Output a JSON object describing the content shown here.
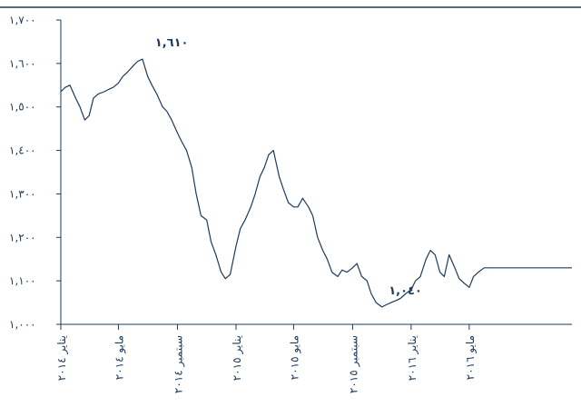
{
  "chart_data": {
    "type": "line",
    "title": "",
    "xlabel": "",
    "ylabel": "",
    "ylim": [
      1000,
      1700
    ],
    "y_ticks": [
      1000,
      1100,
      1200,
      1300,
      1400,
      1500,
      1600,
      1700
    ],
    "y_tick_labels": [
      "١,٠٠٠",
      "١,١٠٠",
      "١,٢٠٠",
      "١,٣٠٠",
      "١,٤٠٠",
      "١,٥٠٠",
      "١,٦٠٠",
      "١,٧٠٠"
    ],
    "x_range": [
      "2014-01",
      "2016-12"
    ],
    "x_ticks": [
      "2014-01",
      "2014-05",
      "2014-09",
      "2015-01",
      "2015-05",
      "2015-09",
      "2016-01",
      "2016-05"
    ],
    "x_tick_labels": [
      "يناير ٢٠١٤",
      "مايو ٢٠١٤",
      "سبتمبر ٢٠١٤",
      "يناير ٢٠١٥",
      "مايو ٢٠١٥",
      "سبتمبر ٢٠١٥",
      "يناير ٢٠١٦",
      "مايو ٢٠١٦"
    ],
    "grid": false,
    "colors": {
      "line": "#1d3b5c",
      "axis": "#1d3b5c",
      "text": "#1d3b5c"
    },
    "annotations": [
      {
        "text": "١,٦١٠",
        "x": "2014-08-20",
        "y": 1610
      },
      {
        "text": "١,٠٤٠",
        "x": "2015-12-20",
        "y": 1040
      }
    ],
    "series": [
      {
        "x": [
          "2014-01-01",
          "2014-01-10",
          "2014-01-20",
          "2014-02-01",
          "2014-02-10",
          "2014-02-20",
          "2014-03-01",
          "2014-03-10",
          "2014-03-20",
          "2014-04-01",
          "2014-04-10",
          "2014-04-20",
          "2014-05-01",
          "2014-05-10",
          "2014-05-20",
          "2014-06-01",
          "2014-06-10",
          "2014-06-20",
          "2014-07-01",
          "2014-07-10",
          "2014-07-20",
          "2014-08-01",
          "2014-08-10",
          "2014-08-20",
          "2014-09-01",
          "2014-09-10",
          "2014-09-20",
          "2014-10-01",
          "2014-10-10",
          "2014-10-20",
          "2014-11-01",
          "2014-11-10",
          "2014-11-20",
          "2014-12-01",
          "2014-12-10",
          "2014-12-20",
          "2015-01-01",
          "2015-01-10",
          "2015-01-20",
          "2015-02-01",
          "2015-02-10",
          "2015-02-20",
          "2015-03-01",
          "2015-03-10",
          "2015-03-20",
          "2015-04-01",
          "2015-04-10",
          "2015-04-20",
          "2015-05-01",
          "2015-05-10",
          "2015-05-20",
          "2015-06-01",
          "2015-06-10",
          "2015-06-20",
          "2015-07-01",
          "2015-07-10",
          "2015-07-20",
          "2015-08-01",
          "2015-08-10",
          "2015-08-20",
          "2015-09-01",
          "2015-09-10",
          "2015-09-20",
          "2015-10-01",
          "2015-10-10",
          "2015-10-20",
          "2015-11-01",
          "2015-11-10",
          "2015-11-20",
          "2015-12-01",
          "2015-12-10",
          "2015-12-20",
          "2016-01-01",
          "2016-01-10",
          "2016-01-20",
          "2016-02-01",
          "2016-02-10",
          "2016-02-20",
          "2016-03-01",
          "2016-03-10",
          "2016-03-20",
          "2016-04-01",
          "2016-04-10",
          "2016-04-20",
          "2016-05-01",
          "2016-05-10",
          "2016-05-20",
          "2016-06-01",
          "2016-06-10",
          "2016-06-20",
          "2016-07-01",
          "2016-07-10",
          "2016-07-20",
          "2016-08-01",
          "2016-08-10",
          "2016-08-20",
          "2016-09-01",
          "2016-10-01",
          "2016-11-01",
          "2016-12-01"
        ],
        "y": [
          1535,
          1545,
          1550,
          1520,
          1500,
          1470,
          1480,
          1520,
          1530,
          1535,
          1540,
          1545,
          1555,
          1570,
          1580,
          1595,
          1605,
          1610,
          1570,
          1550,
          1530,
          1500,
          1490,
          1470,
          1440,
          1420,
          1400,
          1360,
          1300,
          1250,
          1240,
          1190,
          1160,
          1120,
          1105,
          1115,
          1180,
          1220,
          1240,
          1270,
          1300,
          1340,
          1360,
          1390,
          1400,
          1340,
          1310,
          1280,
          1270,
          1270,
          1290,
          1270,
          1250,
          1200,
          1170,
          1150,
          1120,
          1110,
          1125,
          1120,
          1130,
          1140,
          1110,
          1100,
          1070,
          1050,
          1040,
          1045,
          1050,
          1055,
          1060,
          1070,
          1080,
          1100,
          1110,
          1150,
          1170,
          1160,
          1120,
          1110,
          1160,
          1130,
          1105,
          1095,
          1085,
          1110,
          1120,
          1130,
          1130,
          1130,
          1130,
          1130,
          1130,
          1130,
          1130,
          1130,
          1130,
          1130,
          1130,
          1130
        ]
      }
    ]
  }
}
